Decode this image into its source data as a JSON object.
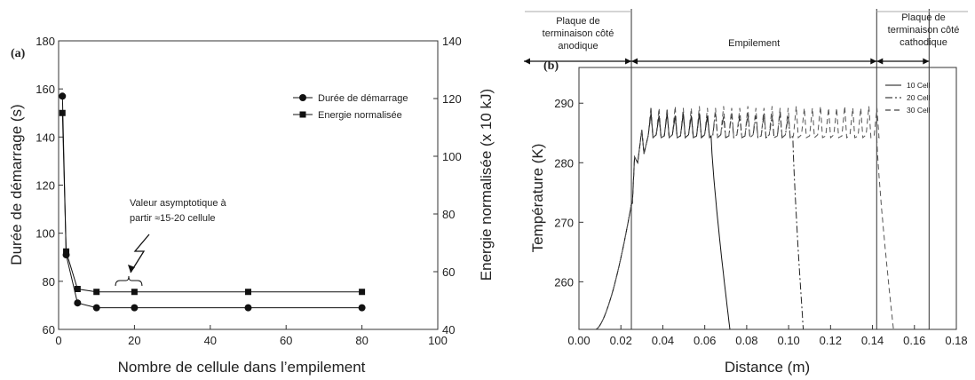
{
  "chart_data": [
    {
      "type": "scatter",
      "panel_label": "(a)",
      "xlabel": "Nombre de cellule dans l’empilement",
      "ylabel": "Durée de démarrage (s)",
      "y2label": "Energie normalisée (x 10 kJ)",
      "xlim": [
        0,
        100
      ],
      "ylim": [
        60,
        180
      ],
      "y2lim": [
        40,
        140
      ],
      "xticks": [
        "0",
        "20",
        "40",
        "60",
        "80",
        "100"
      ],
      "yticks": [
        "60",
        "80",
        "100",
        "120",
        "140",
        "160",
        "180"
      ],
      "y2ticks": [
        "40",
        "60",
        "80",
        "100",
        "120",
        "140"
      ],
      "legend_position": "top-right",
      "series": [
        {
          "name": "Durée de démarrage",
          "axis": "left",
          "marker": "circle",
          "x": [
            1,
            2,
            5,
            10,
            20,
            50,
            80
          ],
          "y": [
            157,
            91,
            71,
            69,
            69,
            69,
            69
          ]
        },
        {
          "name": "Energie normalisée",
          "axis": "right",
          "marker": "square",
          "x": [
            1,
            2,
            5,
            10,
            20,
            50,
            80
          ],
          "y": [
            115,
            67,
            54,
            53,
            53,
            53,
            53
          ]
        }
      ],
      "annotation": {
        "lines": [
          "Valeur asymptotique à",
          "partir ≈15-20 cellule"
        ],
        "bracket_x": [
          15,
          22
        ]
      }
    },
    {
      "type": "line",
      "panel_label": "(b)",
      "xlabel": "Distance (m)",
      "ylabel": "Température (K)",
      "xlim": [
        0,
        0.18
      ],
      "ylim": [
        252,
        296
      ],
      "xticks": [
        "0.00",
        "0.02",
        "0.04",
        "0.06",
        "0.08",
        "0.10",
        "0.12",
        "0.14",
        "0.16",
        "0.18"
      ],
      "yticks": [
        "260",
        "270",
        "280",
        "290"
      ],
      "legend_position": "top-right",
      "series": [
        {
          "name": "10 Cell",
          "dash": "solid",
          "plateau_x": [
            0.025,
            0.063
          ],
          "end_x": 0.072
        },
        {
          "name": "20 Cell",
          "dash": "dashdot",
          "plateau_x": [
            0.025,
            0.102
          ],
          "end_x": 0.107
        },
        {
          "name": "30 Cell",
          "dash": "dashed",
          "plateau_x": [
            0.025,
            0.142
          ],
          "end_x": 0.15
        }
      ],
      "peak_temperature": 289.5,
      "base_temperature": 284.5,
      "region_lines_x": [
        0.025,
        0.142,
        0.167
      ],
      "regions": [
        {
          "label_lines": [
            "Plaque de",
            "terminaison côté",
            "anodique"
          ]
        },
        {
          "label_lines": [
            "Empilement"
          ]
        },
        {
          "label_lines": [
            "Plaque de",
            "terminaison côté",
            "cathodique"
          ]
        }
      ]
    }
  ]
}
